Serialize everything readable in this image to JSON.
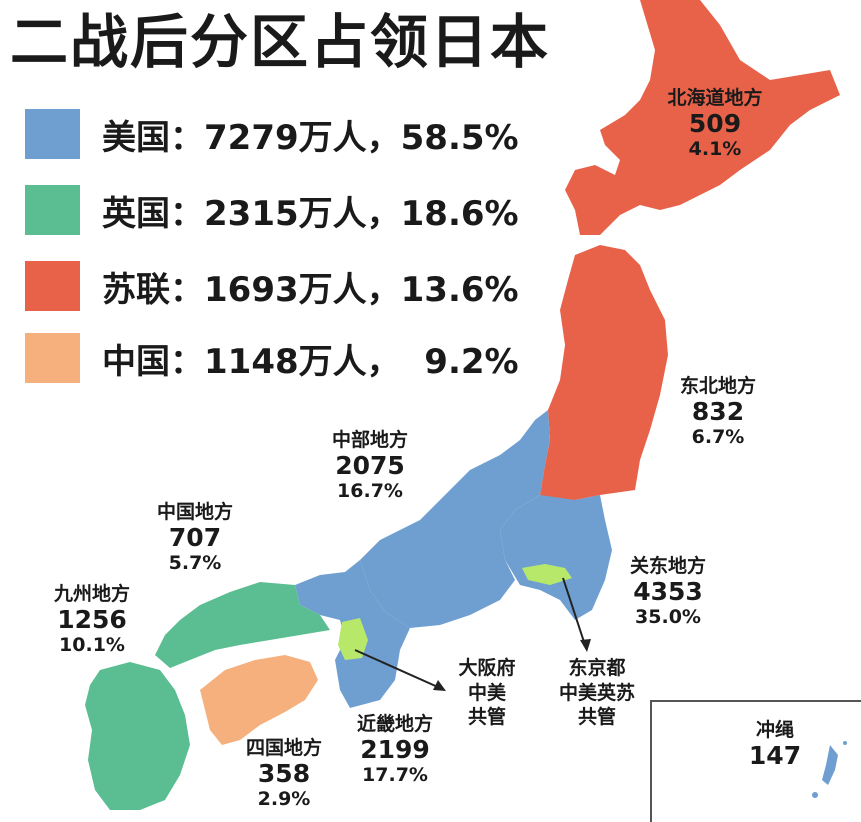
{
  "title": "二战后分区占领日本",
  "legend": [
    {
      "label": "美国：7279万人，58.5%",
      "color": "#6f9fd0"
    },
    {
      "label": "英国：2315万人，18.6%",
      "color": "#5bbd92"
    },
    {
      "label": "苏联：1693万人，13.6%",
      "color": "#e8624a"
    },
    {
      "label": "中国：1148万人，  9.2%",
      "color": "#f5b07e"
    }
  ],
  "regions": {
    "hokkaido": {
      "name": "北海道地方",
      "pop": "509",
      "pct": "4.1%"
    },
    "tohoku": {
      "name": "东北地方",
      "pop": "832",
      "pct": "6.7%"
    },
    "chubu": {
      "name": "中部地方",
      "pop": "2075",
      "pct": "16.7%"
    },
    "kanto": {
      "name": "关东地方",
      "pop": "4353",
      "pct": "35.0%"
    },
    "chugoku": {
      "name": "中国地方",
      "pop": "707",
      "pct": "5.7%"
    },
    "kyushu": {
      "name": "九州地方",
      "pop": "1256",
      "pct": "10.1%"
    },
    "shikoku": {
      "name": "四国地方",
      "pop": "358",
      "pct": "2.9%"
    },
    "kinki": {
      "name": "近畿地方",
      "pop": "2199",
      "pct": "17.7%"
    },
    "okinawa": {
      "name": "冲绳",
      "pop": "147"
    }
  },
  "annotations": {
    "osaka": [
      "大阪府",
      "中美",
      "共管"
    ],
    "tokyo": [
      "东京都",
      "中美英苏",
      "共管"
    ]
  },
  "colors": {
    "joint": "#b8e86a",
    "border": "#ffffff"
  }
}
